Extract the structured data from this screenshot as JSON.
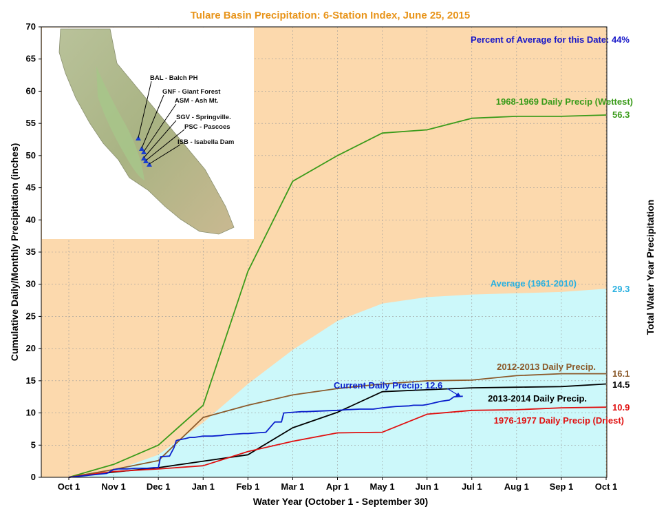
{
  "chart_data": {
    "type": "line",
    "title": "Tulare Basin Precipitation: 6-Station Index, June 25, 2015",
    "xlabel": "Water Year (October 1 - September 30)",
    "ylabel": "Cumulative Daily/Monthly Precipitation (inches)",
    "ylabel_right": "Total Water Year Precipitation",
    "x_ticks": [
      "Oct 1",
      "Nov 1",
      "Dec 1",
      "Jan 1",
      "Feb 1",
      "Mar 1",
      "Apr 1",
      "May 1",
      "Jun 1",
      "Jul 1",
      "Aug 1",
      "Sep 1",
      "Oct 1"
    ],
    "ylim": [
      0,
      70
    ],
    "y_ticks": [
      0,
      5,
      10,
      15,
      20,
      25,
      30,
      35,
      40,
      45,
      50,
      55,
      60,
      65,
      70
    ],
    "grid": "dashed",
    "percent_of_average": "Percent of Average for this Date: 44%",
    "series": [
      {
        "name": "1968-1969 Daily Precip (Wettest)",
        "color": "#3a9b1a",
        "total": "56.3",
        "x": [
          0,
          1,
          2,
          3,
          4,
          5,
          6,
          7,
          8,
          9,
          10,
          11,
          12
        ],
        "values": [
          0,
          2.0,
          5.0,
          11.2,
          32.0,
          46.0,
          50.0,
          53.5,
          54.0,
          55.8,
          56.1,
          56.1,
          56.3
        ]
      },
      {
        "name": "Average (1961-2010)",
        "color": "#2ab0e0",
        "fill": "#cdfafa",
        "total": "29.3",
        "x": [
          0,
          1,
          2,
          3,
          4,
          5,
          6,
          7,
          8,
          9,
          10,
          11,
          12
        ],
        "values": [
          0,
          1.0,
          3.5,
          8.5,
          14.5,
          19.8,
          24.3,
          27.0,
          28.0,
          28.4,
          28.6,
          28.8,
          29.3
        ]
      },
      {
        "name": "2012-2013 Daily Precip.",
        "color": "#8b5a2b",
        "total": "16.1",
        "x": [
          0,
          1,
          2,
          3,
          4,
          5,
          6,
          7,
          8,
          9,
          10,
          11,
          12
        ],
        "values": [
          0,
          1.2,
          2.6,
          9.3,
          11.2,
          12.8,
          13.8,
          14.5,
          15.0,
          15.1,
          15.8,
          16.1,
          16.1
        ]
      },
      {
        "name": "2013-2014 Daily Precip.",
        "color": "#000000",
        "total": "14.5",
        "x": [
          0,
          1,
          2,
          3,
          4,
          5,
          6,
          7,
          8,
          9,
          10,
          11,
          12
        ],
        "values": [
          0,
          0.8,
          1.5,
          2.5,
          3.5,
          7.7,
          10.1,
          13.3,
          13.6,
          13.9,
          14.0,
          14.1,
          14.5
        ]
      },
      {
        "name": "1976-1977 Daily Precip (Driest)",
        "color": "#e01010",
        "total": "10.9",
        "x": [
          0,
          1,
          2,
          3,
          4,
          5,
          6,
          7,
          8,
          9,
          10,
          11,
          12
        ],
        "values": [
          0,
          0.9,
          1.3,
          1.8,
          4.0,
          5.6,
          6.9,
          7.0,
          9.8,
          10.4,
          10.5,
          10.8,
          10.9
        ]
      },
      {
        "name": "Current Daily Precip: 12.6",
        "color": "#0a1fcc",
        "x": [
          0,
          0.85,
          1.0,
          1.1,
          1.3,
          1.5,
          1.6,
          1.75,
          1.9,
          2.0,
          2.05,
          2.25,
          2.35,
          2.4,
          2.45,
          2.6,
          2.7,
          2.8,
          2.9,
          3.0,
          3.2,
          3.4,
          3.5,
          3.7,
          3.9,
          4.0,
          4.2,
          4.4,
          4.6,
          4.75,
          4.8,
          5.0,
          5.2,
          5.3,
          5.6,
          6.0,
          6.2,
          6.5,
          6.8,
          7.0,
          7.3,
          7.6,
          7.7,
          7.9,
          8.0,
          8.3,
          8.5,
          8.6,
          8.8
        ],
        "values": [
          0,
          0.6,
          1.2,
          1.3,
          1.3,
          1.4,
          1.4,
          1.4,
          1.5,
          1.5,
          3.2,
          3.3,
          4.6,
          5.7,
          5.8,
          6.0,
          6.2,
          6.2,
          6.3,
          6.4,
          6.4,
          6.5,
          6.6,
          6.7,
          6.8,
          6.8,
          6.9,
          7.0,
          8.6,
          8.6,
          10.0,
          10.1,
          10.2,
          10.2,
          10.3,
          10.4,
          10.5,
          10.6,
          10.6,
          10.8,
          11.0,
          11.1,
          11.2,
          11.2,
          11.3,
          11.8,
          12.0,
          12.5,
          12.6
        ]
      }
    ]
  },
  "inset": {
    "stations": [
      "BAL - Balch PH",
      "GNF - Giant Forest",
      "ASM - Ash Mt.",
      "SGV - Springville.",
      "PSC - Pascoes",
      "ISB - Isabella Dam"
    ]
  },
  "colors": {
    "plot_bg": "#fcd9ad",
    "avg_fill": "#ccf8fa",
    "title": "#e8941a",
    "percent": "#1515c8"
  }
}
